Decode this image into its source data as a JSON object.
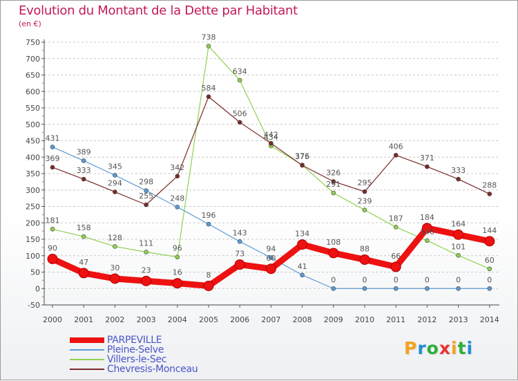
{
  "title": "Evolution du Montant de la Dette par Habitant",
  "unit": "(en €)",
  "chart_data": {
    "type": "line",
    "title": "Evolution du Montant de la Dette par Habitant",
    "ylabel": "(en €)",
    "xlabel": "",
    "x": [
      "2000",
      "2001",
      "2002",
      "2003",
      "2004",
      "2005",
      "2006",
      "2007",
      "2008",
      "2009",
      "2010",
      "2011",
      "2012",
      "2013",
      "2014"
    ],
    "ylim": [
      -50,
      750
    ],
    "yticks": [
      -50,
      0,
      50,
      100,
      150,
      200,
      250,
      300,
      350,
      400,
      450,
      500,
      550,
      600,
      650,
      700,
      750
    ],
    "grid": "horizontal-dashed",
    "legend_position": "bottom-left",
    "series": [
      {
        "name": "PARPEVILLE",
        "color": "#ee1111",
        "emphasis": true,
        "values": [
          90,
          47,
          30,
          23,
          16,
          8,
          73,
          60,
          134,
          108,
          88,
          66,
          184,
          164,
          144
        ],
        "labels": [
          "90",
          "47",
          "30",
          "23",
          "16",
          "8",
          "73",
          "60",
          "134",
          "108",
          "88",
          "66",
          "184",
          "164",
          "144"
        ]
      },
      {
        "name": "Pleine-Selve",
        "color": "#5b9bd5",
        "values": [
          431,
          389,
          345,
          298,
          248,
          196,
          143,
          94,
          41,
          0,
          0,
          0,
          0,
          0,
          0
        ],
        "labels": [
          "431",
          "389",
          "345",
          "298",
          "248",
          "196",
          "143",
          "94",
          "41",
          "0",
          "0",
          "0",
          "0",
          "0",
          "0"
        ]
      },
      {
        "name": "Villers-le-Sec",
        "color": "#8fd14f",
        "values": [
          181,
          158,
          128,
          111,
          96,
          738,
          634,
          434,
          376,
          291,
          239,
          187,
          146,
          101,
          60
        ],
        "labels": [
          "181",
          "158",
          "128",
          "111",
          "96",
          "738",
          "634",
          "434",
          "376",
          "291",
          "239",
          "187",
          "146",
          "101",
          "60"
        ]
      },
      {
        "name": "Chevresis-Monceau",
        "color": "#7b2a2a",
        "values": [
          369,
          333,
          294,
          255,
          342,
          584,
          506,
          442,
          375,
          326,
          295,
          406,
          371,
          333,
          288
        ],
        "labels": [
          "369",
          "333",
          "294",
          "255",
          "342",
          "584",
          "506",
          "442",
          "375",
          "326",
          "295",
          "406",
          "371",
          "333",
          "288"
        ]
      }
    ]
  },
  "logo": {
    "text": "Proxiti",
    "colors": [
      "#f4a21b",
      "#1e8fd6",
      "#2eaf3e",
      "#e6352f",
      "#f4a21b",
      "#2eaf3e",
      "#1e8fd6"
    ]
  }
}
